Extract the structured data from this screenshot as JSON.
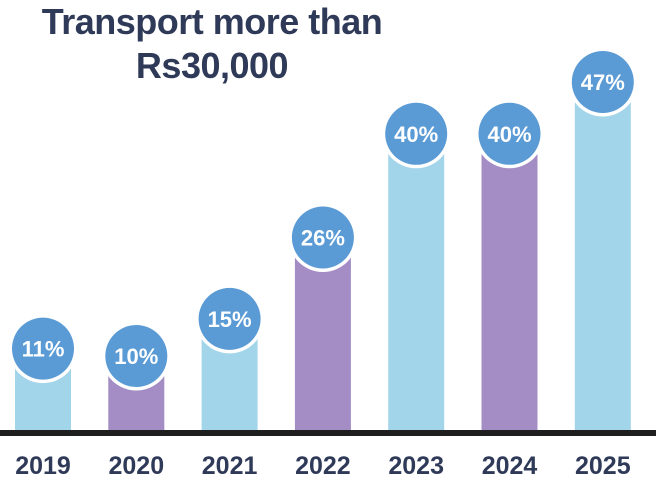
{
  "title": {
    "line1": "Transport more than",
    "line2": "Rs30,000"
  },
  "colors": {
    "bar_light_blue": "#a3d5ea",
    "bar_purple": "#a48cc4",
    "label_circle": "#5b9bd5",
    "label_text": "#ffffff",
    "baseline": "#1f1f1f",
    "axis_text": "#2f3a58",
    "title_text": "#2f3a58"
  },
  "chart_data": {
    "type": "bar",
    "title": "Transport more than Rs30,000",
    "xlabel": "",
    "ylabel": "",
    "categories": [
      "2019",
      "2020",
      "2021",
      "2022",
      "2023",
      "2024",
      "2025"
    ],
    "values": [
      11,
      10,
      15,
      26,
      40,
      40,
      47
    ],
    "value_labels": [
      "11%",
      "10%",
      "15%",
      "26%",
      "40%",
      "40%",
      "47%"
    ],
    "bar_colors": [
      "#a3d5ea",
      "#a48cc4",
      "#a3d5ea",
      "#a48cc4",
      "#a3d5ea",
      "#a48cc4",
      "#a3d5ea"
    ],
    "ylim": [
      0,
      47
    ],
    "grid": false,
    "legend": "none"
  }
}
